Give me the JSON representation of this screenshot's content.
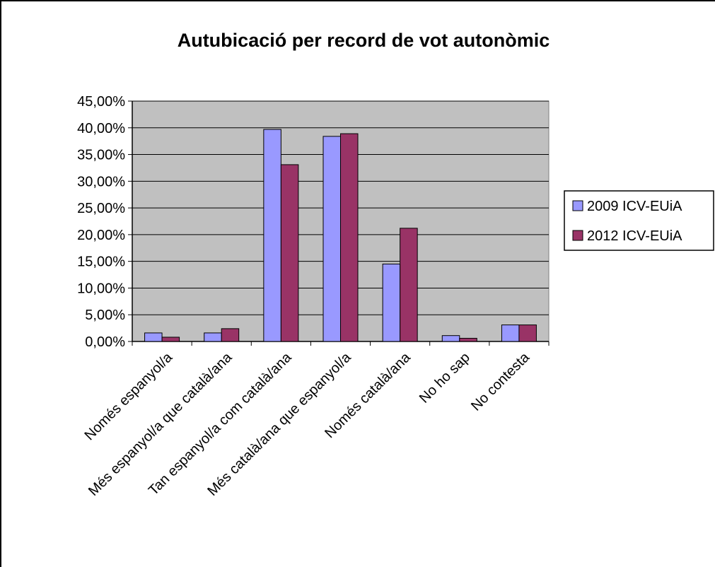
{
  "chart_data": {
    "type": "bar",
    "title": "Autubicació per record de vot autonòmic",
    "xlabel": "",
    "ylabel": "",
    "ylim": [
      0,
      45
    ],
    "ytick_step": 5,
    "ytick_labels": [
      "0,00%",
      "5,00%",
      "10,00%",
      "15,00%",
      "20,00%",
      "25,00%",
      "30,00%",
      "35,00%",
      "40,00%",
      "45,00%"
    ],
    "grid": true,
    "legend_position": "right",
    "categories": [
      "Només espanyol/a",
      "Més espanyol/a que català/ana",
      "Tan espanyol/a com català/ana",
      "Més català/ana que espanyol/a",
      "Només català/ana",
      "No ho sap",
      "No contesta"
    ],
    "series": [
      {
        "name": "2009 ICV-EUiA",
        "color": "#9999ff",
        "values": [
          1.6,
          1.6,
          39.7,
          38.4,
          14.5,
          1.1,
          3.1
        ]
      },
      {
        "name": "2012 ICV-EUiA",
        "color": "#993366",
        "values": [
          0.8,
          2.4,
          33.1,
          38.9,
          21.2,
          0.6,
          3.1
        ]
      }
    ],
    "plot_background": "#c0c0c0"
  }
}
